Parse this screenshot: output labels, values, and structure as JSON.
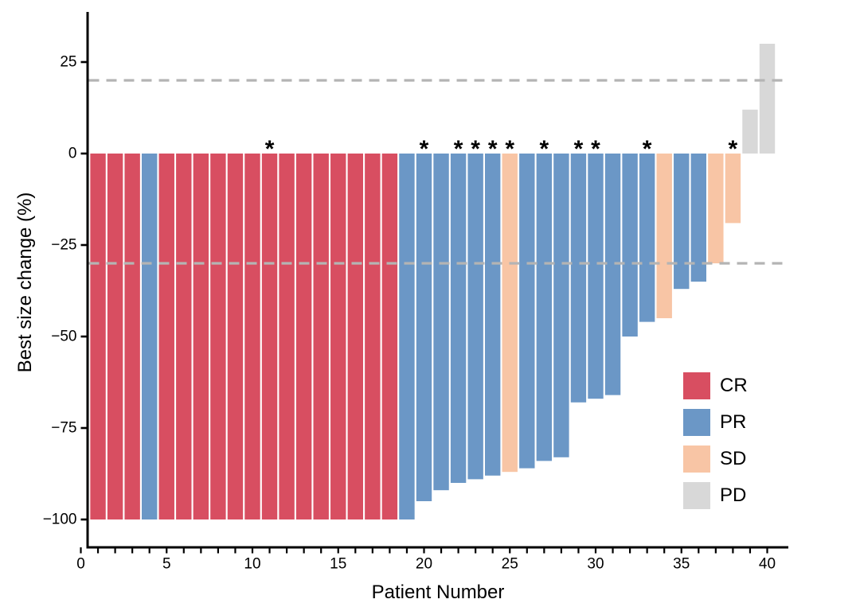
{
  "chart_data": {
    "type": "bar",
    "subtype": "waterfall",
    "title": "",
    "xlabel": "Patient Number",
    "ylabel": "Best size change (%)",
    "xlim": [
      0,
      41
    ],
    "ylim": [
      -108,
      36
    ],
    "x_ticks_major": [
      0,
      5,
      10,
      15,
      20,
      25,
      30,
      35,
      40
    ],
    "x_tick_labels": [
      "0",
      "5",
      "10",
      "15",
      "20",
      "25",
      "30",
      "35",
      "40"
    ],
    "x_minor_tick_every": 1,
    "y_ticks": [
      25,
      0,
      -25,
      -50,
      -75,
      -100
    ],
    "y_tick_labels": [
      "25",
      "0",
      "−25",
      "−50",
      "−75",
      "−100"
    ],
    "grid": "off",
    "reference_lines": {
      "values": [
        20,
        -30
      ],
      "style": "dashed",
      "color": "#b4b4b4"
    },
    "annotation_symbol": "*",
    "annotated_patients": [
      11,
      20,
      22,
      23,
      24,
      25,
      27,
      29,
      30,
      33,
      38
    ],
    "legend": {
      "position": "right-lower",
      "entries": [
        {
          "label": "CR",
          "color": "#d84e61"
        },
        {
          "label": "PR",
          "color": "#6b97c6"
        },
        {
          "label": "SD",
          "color": "#f8c5a5"
        },
        {
          "label": "PD",
          "color": "#d8d8d8"
        }
      ]
    },
    "colors_by_response": {
      "CR": "#d84e61",
      "PR": "#6b97c6",
      "SD": "#f8c5a5",
      "PD": "#d8d8d8"
    },
    "patients": [
      {
        "n": 1,
        "change": -100,
        "response": "CR",
        "star": false
      },
      {
        "n": 2,
        "change": -100,
        "response": "CR",
        "star": false
      },
      {
        "n": 3,
        "change": -100,
        "response": "CR",
        "star": false
      },
      {
        "n": 4,
        "change": -100,
        "response": "PR",
        "star": false
      },
      {
        "n": 5,
        "change": -100,
        "response": "CR",
        "star": false
      },
      {
        "n": 6,
        "change": -100,
        "response": "CR",
        "star": false
      },
      {
        "n": 7,
        "change": -100,
        "response": "CR",
        "star": false
      },
      {
        "n": 8,
        "change": -100,
        "response": "CR",
        "star": false
      },
      {
        "n": 9,
        "change": -100,
        "response": "CR",
        "star": false
      },
      {
        "n": 10,
        "change": -100,
        "response": "CR",
        "star": false
      },
      {
        "n": 11,
        "change": -100,
        "response": "CR",
        "star": true
      },
      {
        "n": 12,
        "change": -100,
        "response": "CR",
        "star": false
      },
      {
        "n": 13,
        "change": -100,
        "response": "CR",
        "star": false
      },
      {
        "n": 14,
        "change": -100,
        "response": "CR",
        "star": false
      },
      {
        "n": 15,
        "change": -100,
        "response": "CR",
        "star": false
      },
      {
        "n": 16,
        "change": -100,
        "response": "CR",
        "star": false
      },
      {
        "n": 17,
        "change": -100,
        "response": "CR",
        "star": false
      },
      {
        "n": 18,
        "change": -100,
        "response": "CR",
        "star": false
      },
      {
        "n": 19,
        "change": -100,
        "response": "PR",
        "star": false
      },
      {
        "n": 20,
        "change": -95,
        "response": "PR",
        "star": true
      },
      {
        "n": 21,
        "change": -92,
        "response": "PR",
        "star": false
      },
      {
        "n": 22,
        "change": -90,
        "response": "PR",
        "star": true
      },
      {
        "n": 23,
        "change": -89,
        "response": "PR",
        "star": true
      },
      {
        "n": 24,
        "change": -88,
        "response": "PR",
        "star": true
      },
      {
        "n": 25,
        "change": -87,
        "response": "SD",
        "star": true
      },
      {
        "n": 26,
        "change": -86,
        "response": "PR",
        "star": false
      },
      {
        "n": 27,
        "change": -84,
        "response": "PR",
        "star": true
      },
      {
        "n": 28,
        "change": -83,
        "response": "PR",
        "star": false
      },
      {
        "n": 29,
        "change": -68,
        "response": "PR",
        "star": true
      },
      {
        "n": 30,
        "change": -67,
        "response": "PR",
        "star": true
      },
      {
        "n": 31,
        "change": -66,
        "response": "PR",
        "star": false
      },
      {
        "n": 32,
        "change": -50,
        "response": "PR",
        "star": false
      },
      {
        "n": 33,
        "change": -46,
        "response": "PR",
        "star": true
      },
      {
        "n": 34,
        "change": -45,
        "response": "SD",
        "star": false
      },
      {
        "n": 35,
        "change": -37,
        "response": "PR",
        "star": false
      },
      {
        "n": 36,
        "change": -35,
        "response": "PR",
        "star": false
      },
      {
        "n": 37,
        "change": -30,
        "response": "SD",
        "star": false
      },
      {
        "n": 38,
        "change": -19,
        "response": "SD",
        "star": true
      },
      {
        "n": 39,
        "change": 12,
        "response": "PD",
        "star": false
      },
      {
        "n": 40,
        "change": 30,
        "response": "PD",
        "star": false
      }
    ]
  }
}
